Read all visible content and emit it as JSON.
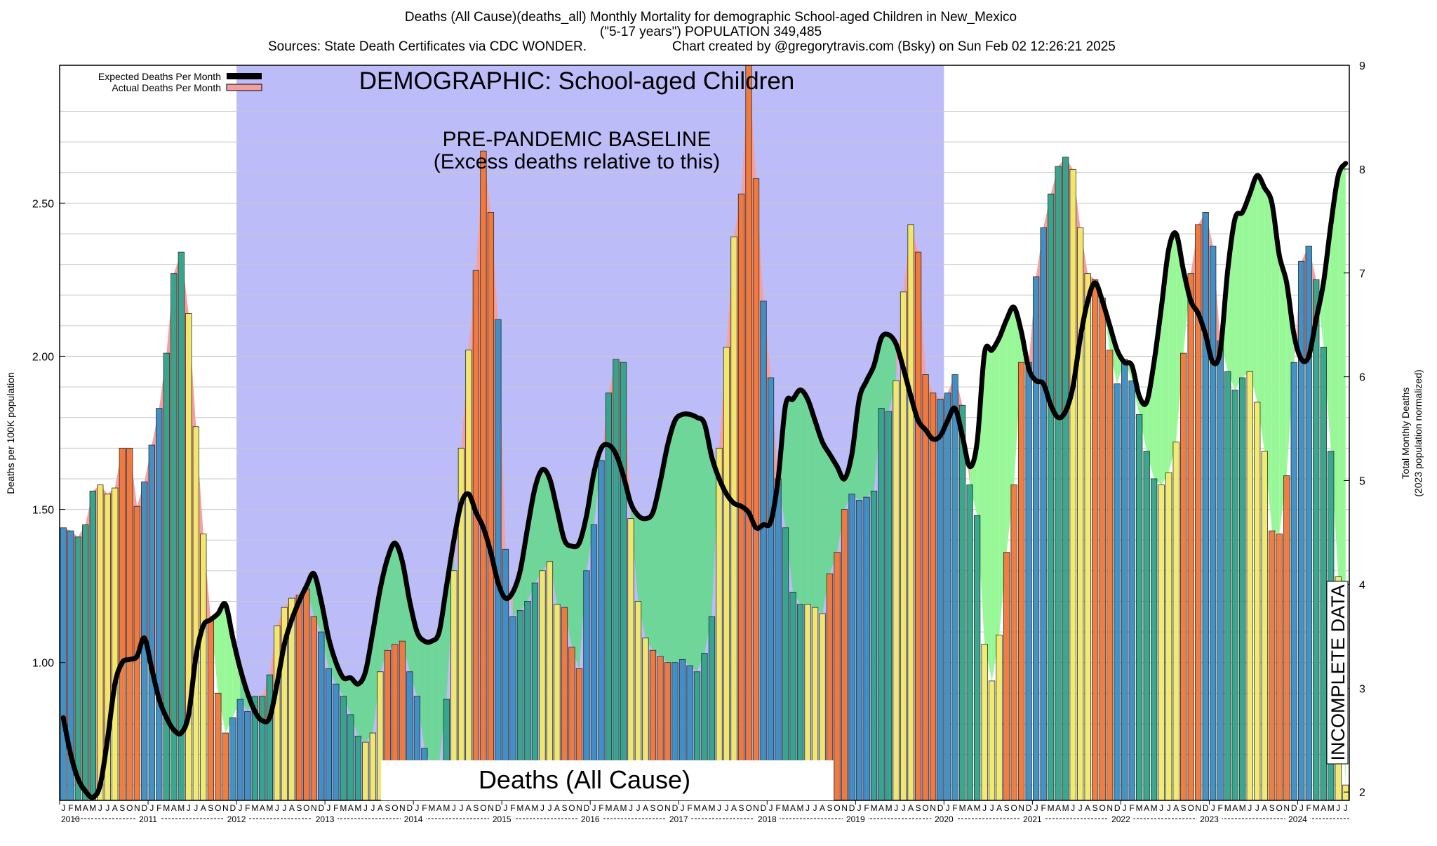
{
  "header": {
    "title": "Deaths (All Cause)(deaths_all) Monthly Mortality for demographic School-aged Children in New_Mexico",
    "subtitle": "(\"5-17 years\") POPULATION 349,485",
    "sources": "Sources: State Death Certificates via CDC WONDER.",
    "credit": "Chart created by @gregorytravis.com (Bsky) on Sun Feb 02 12:26:21 2025"
  },
  "legend": {
    "expected": "Expected Deaths Per Month",
    "actual": "Actual Deaths Per Month"
  },
  "annotations": {
    "demographic": "DEMOGRAPHIC: School-aged Children",
    "baseline_1": "PRE-PANDEMIC BASELINE",
    "baseline_2": "(Excess deaths relative to this)",
    "cause_box": "Deaths (All Cause)",
    "incomplete": "INCOMPLETE DATA"
  },
  "axes": {
    "ylabel_left": "Deaths per 100K population",
    "ylabel_right_1": "Total Monthly Deaths",
    "ylabel_right_2": "(2023 population normalized)"
  },
  "colors": {
    "baseline_region": "#bcbcf8",
    "excess_fill": "#98f898",
    "overlap_fill": "#6fd69a",
    "deficit_fill": "#f4a0a0",
    "expected_line": "#000000",
    "winter": "#3a8ec4",
    "spring": "#2fa48a",
    "summer": "#f2ea6a",
    "fall": "#f07838",
    "hatch": "#999999"
  },
  "chart_data": {
    "type": "bar",
    "start": "2010-01",
    "ylim": [
      0.55,
      2.95
    ],
    "ylim_right": [
      1.92,
      9.0
    ],
    "yticks_left": [
      "1.00",
      "1.50",
      "2.00",
      "2.50"
    ],
    "yticks_right": [
      "2",
      "3",
      "4",
      "5",
      "6",
      "7",
      "8",
      "9"
    ],
    "month_letters": [
      "J",
      "F",
      "M",
      "A",
      "M",
      "J",
      "J",
      "A",
      "S",
      "O",
      "N",
      "D"
    ],
    "years": [
      "2010",
      "2011",
      "2012",
      "2013",
      "2014",
      "2015",
      "2016",
      "2017",
      "2018",
      "2019",
      "2020",
      "2021",
      "2022",
      "2023",
      "2024"
    ],
    "baseline_period": [
      "2012-01",
      "2019-12"
    ],
    "incomplete_from": "2024-09",
    "series": [
      {
        "name": "Actual Deaths Per Month",
        "values": [
          1.44,
          1.43,
          1.41,
          1.45,
          1.56,
          1.58,
          1.55,
          1.57,
          1.7,
          1.7,
          1.51,
          1.59,
          1.71,
          1.83,
          2.01,
          2.27,
          2.34,
          2.14,
          1.77,
          1.42,
          1.14,
          0.9,
          0.77,
          0.82,
          0.88,
          0.84,
          0.89,
          0.89,
          0.96,
          1.12,
          1.18,
          1.21,
          1.22,
          1.24,
          1.15,
          1.1,
          0.98,
          0.93,
          0.89,
          0.83,
          0.76,
          0.74,
          0.77,
          0.97,
          1.04,
          1.06,
          1.07,
          0.97,
          0.89,
          0.72,
          0.66,
          0.67,
          0.88,
          1.3,
          1.7,
          2.02,
          2.28,
          2.67,
          2.47,
          2.12,
          1.37,
          1.15,
          1.17,
          1.2,
          1.26,
          1.3,
          1.33,
          1.19,
          1.18,
          1.05,
          0.98,
          1.3,
          1.45,
          1.66,
          1.88,
          1.99,
          1.98,
          1.47,
          1.2,
          1.08,
          1.04,
          1.02,
          1.0,
          1.0,
          1.01,
          0.99,
          0.97,
          1.03,
          1.15,
          1.7,
          2.03,
          2.39,
          2.53,
          2.95,
          2.58,
          2.18,
          1.93,
          1.6,
          1.44,
          1.23,
          1.19,
          1.19,
          1.18,
          1.16,
          1.29,
          1.36,
          1.5,
          1.55,
          1.53,
          1.54,
          1.56,
          1.83,
          1.82,
          1.92,
          2.21,
          2.43,
          2.34,
          1.94,
          1.88,
          1.86,
          1.88,
          1.94,
          1.84,
          1.58,
          1.48,
          1.06,
          0.94,
          1.09,
          1.36,
          1.58,
          1.98,
          1.98,
          2.26,
          2.42,
          2.53,
          2.62,
          2.65,
          2.61,
          2.42,
          2.27,
          2.25,
          2.19,
          2.02,
          1.91,
          1.99,
          1.92,
          1.81,
          1.69,
          1.6,
          1.58,
          1.62,
          1.72,
          2.01,
          2.27,
          2.43,
          2.47,
          2.36,
          2.05,
          1.95,
          1.89,
          1.93,
          1.95,
          1.85,
          1.69,
          1.43,
          1.42,
          1.61,
          1.98,
          2.31,
          2.36,
          2.25,
          2.03,
          1.69,
          1.28,
          0.6
        ]
      },
      {
        "name": "Expected Deaths Per Month",
        "values": [
          0.82,
          0.7,
          0.62,
          0.58,
          0.56,
          0.6,
          0.75,
          0.93,
          1.0,
          1.01,
          1.02,
          1.08,
          0.98,
          0.88,
          0.82,
          0.78,
          0.77,
          0.83,
          1.02,
          1.12,
          1.14,
          1.16,
          1.19,
          1.08,
          0.98,
          0.9,
          0.84,
          0.81,
          0.82,
          0.93,
          1.06,
          1.14,
          1.2,
          1.25,
          1.29,
          1.2,
          1.08,
          1.0,
          0.95,
          0.95,
          0.93,
          0.97,
          1.1,
          1.24,
          1.34,
          1.39,
          1.33,
          1.2,
          1.1,
          1.07,
          1.07,
          1.1,
          1.25,
          1.4,
          1.52,
          1.55,
          1.49,
          1.44,
          1.36,
          1.26,
          1.21,
          1.23,
          1.3,
          1.44,
          1.57,
          1.63,
          1.6,
          1.5,
          1.4,
          1.38,
          1.39,
          1.48,
          1.62,
          1.7,
          1.71,
          1.68,
          1.61,
          1.52,
          1.48,
          1.47,
          1.49,
          1.59,
          1.71,
          1.79,
          1.81,
          1.81,
          1.8,
          1.78,
          1.67,
          1.6,
          1.55,
          1.52,
          1.51,
          1.49,
          1.44,
          1.45,
          1.46,
          1.6,
          1.84,
          1.86,
          1.89,
          1.86,
          1.79,
          1.72,
          1.68,
          1.64,
          1.6,
          1.68,
          1.86,
          1.92,
          1.97,
          2.06,
          2.07,
          2.04,
          1.96,
          1.87,
          1.79,
          1.76,
          1.73,
          1.74,
          1.79,
          1.83,
          1.74,
          1.64,
          1.72,
          2.01,
          2.02,
          2.06,
          2.12,
          2.16,
          2.08,
          1.96,
          1.92,
          1.91,
          1.84,
          1.8,
          1.82,
          1.9,
          2.06,
          2.18,
          2.24,
          2.18,
          2.1,
          2.02,
          1.98,
          1.97,
          1.87,
          1.85,
          1.98,
          2.16,
          2.35,
          2.4,
          2.28,
          2.18,
          2.14,
          2.07,
          1.98,
          2.02,
          2.28,
          2.45,
          2.47,
          2.53,
          2.59,
          2.55,
          2.5,
          2.33,
          2.24,
          2.07,
          1.99,
          2.0,
          2.12,
          2.24,
          2.43,
          2.59,
          2.63
        ]
      }
    ]
  }
}
